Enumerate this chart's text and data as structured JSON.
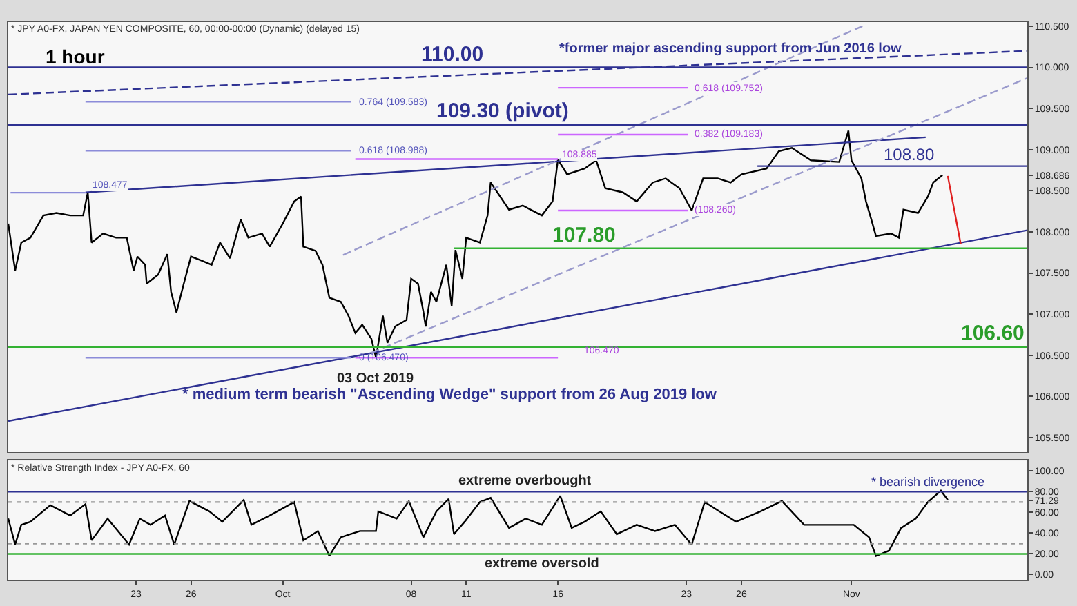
{
  "chart_data": [
    {
      "type": "line",
      "grid": false,
      "tick_labels": "y",
      "xlim": [
        "2019-09-16T01:00",
        "2019-11-10T14:00"
      ],
      "ylim": [
        105.32,
        110.55
      ],
      "yticks": [
        {
          "value": 105.5,
          "label": "105.500"
        },
        {
          "value": 106.0,
          "label": "106.000"
        },
        {
          "value": 106.5,
          "label": "106.500"
        },
        {
          "value": 107.0,
          "label": "107.000"
        },
        {
          "value": 107.5,
          "label": "107.500"
        },
        {
          "value": 108.0,
          "label": "108.000"
        },
        {
          "value": 108.5,
          "label": "108.500"
        },
        {
          "value": 108.686,
          "label": "108.686"
        },
        {
          "value": 109.0,
          "label": "109.000"
        },
        {
          "value": 109.5,
          "label": "109.500"
        },
        {
          "value": 110.0,
          "label": "110.000"
        },
        {
          "value": 110.5,
          "label": "110.500"
        }
      ],
      "series": [
        {
          "color": "#000000",
          "x": [
            "2019-09-16T01:00",
            "2019-09-16T10:00",
            "2019-09-16T18:00",
            "2019-09-17T06:00",
            "2019-09-17T23:00",
            "2019-09-18T16:00",
            "2019-09-19T10:00",
            "2019-09-20T03:00",
            "2019-09-20T09:00",
            "2019-09-20T14:00",
            "2019-09-21T05:00",
            "2019-09-21T22:00",
            "2019-09-22T12:00",
            "2019-09-22T21:00",
            "2019-09-23T02:00",
            "2019-09-23T12:00",
            "2019-09-23T14:00",
            "2019-09-24T05:00",
            "2019-09-24T17:00",
            "2019-09-24T22:00",
            "2019-09-25T05:00",
            "2019-09-25T14:00",
            "2019-09-26T00:00",
            "2019-09-26T14:00",
            "2019-09-27T03:00",
            "2019-09-27T14:00",
            "2019-09-28T03:00",
            "2019-09-28T17:00",
            "2019-09-29T03:00",
            "2019-09-29T21:00",
            "2019-09-30T07:00",
            "2019-10-01T00:00",
            "2019-10-01T15:00",
            "2019-10-02T00:00",
            "2019-10-02T03:00",
            "2019-10-02T19:00",
            "2019-10-03T04:00",
            "2019-10-03T13:00",
            "2019-10-04T04:00",
            "2019-10-04T14:00",
            "2019-10-04T23:00",
            "2019-10-05T08:00",
            "2019-10-05T20:00",
            "2019-10-06T02:00",
            "2019-10-06T11:00",
            "2019-10-06T17:00",
            "2019-10-07T03:00",
            "2019-10-07T18:00",
            "2019-10-08T00:00",
            "2019-10-08T09:00",
            "2019-10-08T16:00",
            "2019-10-08T19:00",
            "2019-10-09T02:00",
            "2019-10-09T09:00",
            "2019-10-09T22:00",
            "2019-10-10T05:00",
            "2019-10-10T10:00",
            "2019-10-10T19:00",
            "2019-10-11T00:00",
            "2019-10-11T18:00",
            "2019-10-12T04:00",
            "2019-10-12T08:00",
            "2019-10-13T08:00",
            "2019-10-14T02:00",
            "2019-10-15T03:00",
            "2019-10-15T17:00",
            "2019-10-16T00:00",
            "2019-10-16T12:00",
            "2019-10-17T11:00",
            "2019-10-18T02:00",
            "2019-10-18T14:00",
            "2019-10-19T13:00",
            "2019-10-20T07:00",
            "2019-10-21T04:00",
            "2019-10-21T21:00",
            "2019-10-22T15:00",
            "2019-10-23T07:00",
            "2019-10-23T22:00",
            "2019-10-24T17:00",
            "2019-10-25T10:00",
            "2019-10-26T00:00",
            "2019-10-27T09:00",
            "2019-10-28T01:00",
            "2019-10-28T18:00",
            "2019-10-29T19:00",
            "2019-10-31T08:00",
            "2019-10-31T20:00",
            "2019-11-01T00:00",
            "2019-11-01T13:00",
            "2019-11-01T19:00",
            "2019-11-02T02:00",
            "2019-11-02T08:00",
            "2019-11-03T04:00",
            "2019-11-03T14:00",
            "2019-11-03T20:00",
            "2019-11-04T15:00",
            "2019-11-05T04:00",
            "2019-11-05T11:00",
            "2019-11-05T23:00"
          ],
          "values": [
            108.1,
            107.53,
            107.87,
            107.93,
            108.2,
            108.23,
            108.2,
            108.2,
            108.48,
            107.87,
            107.98,
            107.93,
            107.93,
            107.53,
            107.7,
            107.6,
            107.37,
            107.48,
            107.73,
            107.27,
            107.02,
            107.35,
            107.7,
            107.65,
            107.6,
            107.87,
            107.68,
            108.15,
            107.93,
            107.98,
            107.82,
            108.1,
            108.37,
            108.43,
            107.82,
            107.77,
            107.6,
            107.2,
            107.15,
            106.98,
            106.77,
            106.87,
            106.7,
            106.47,
            106.98,
            106.65,
            106.85,
            106.93,
            107.43,
            107.37,
            107.03,
            106.85,
            107.27,
            107.15,
            107.6,
            107.1,
            107.78,
            107.43,
            107.93,
            107.87,
            108.2,
            108.6,
            108.27,
            108.32,
            108.2,
            108.37,
            108.88,
            108.7,
            108.77,
            108.87,
            108.53,
            108.48,
            108.37,
            108.6,
            108.65,
            108.53,
            108.26,
            108.65,
            108.65,
            108.6,
            108.7,
            108.77,
            108.98,
            109.02,
            108.87,
            108.85,
            109.23,
            108.87,
            108.65,
            108.37,
            108.15,
            107.95,
            107.98,
            107.93,
            108.27,
            108.23,
            108.43,
            108.6,
            108.69
          ]
        },
        {
          "color": "#2e3192",
          "line_style": "dashed",
          "x": [
            "2019-09-16T01:00",
            "2019-11-10T14:00"
          ],
          "values": [
            109.67,
            110.2
          ]
        },
        {
          "color": "#2e3192",
          "x": [
            "2019-09-20T06:00",
            "2019-11-05T01:00"
          ],
          "values": [
            108.48,
            109.15
          ]
        },
        {
          "color": "#2e3192",
          "x": [
            "2019-09-16T01:00",
            "2019-11-10T14:00"
          ],
          "values": [
            105.7,
            108.02
          ]
        },
        {
          "color": "#9a9acc",
          "line_style": "dashed",
          "x": [
            "2019-10-04T07:00",
            "2019-11-01T19:00"
          ],
          "values": [
            107.72,
            110.52
          ]
        },
        {
          "color": "#9a9acc",
          "line_style": "dashed",
          "x": [
            "2019-10-05T20:00",
            "2019-11-10T14:00"
          ],
          "values": [
            106.53,
            109.87
          ]
        },
        {
          "color": "#2e3192",
          "x": [
            "2019-09-16T01:00",
            "2019-11-10T14:00"
          ],
          "values": [
            110.0,
            110.0
          ]
        },
        {
          "color": "#2e3192",
          "x": [
            "2019-09-16T01:00",
            "2019-11-10T14:00"
          ],
          "values": [
            109.3,
            109.3
          ]
        },
        {
          "color": "#2e3192",
          "x": [
            "2019-10-26T21:00",
            "2019-11-10T14:00"
          ],
          "values": [
            108.8,
            108.8
          ]
        },
        {
          "color": "#33b233",
          "x": [
            "2019-10-10T08:00",
            "2019-11-10T14:00"
          ],
          "values": [
            107.8,
            107.8
          ]
        },
        {
          "color": "#33b233",
          "x": [
            "2019-09-16T01:00",
            "2019-11-10T14:00"
          ],
          "values": [
            106.6,
            106.6
          ]
        },
        {
          "color": "#8c8cd9",
          "x": [
            "2019-09-16T04:00",
            "2019-09-20T06:00"
          ],
          "values": [
            108.477,
            108.477
          ]
        },
        {
          "color": "#8c8cd9",
          "x": [
            "2019-09-20T06:00",
            "2019-10-04T17:00"
          ],
          "values": [
            109.583,
            109.583
          ]
        },
        {
          "color": "#8c8cd9",
          "x": [
            "2019-09-20T06:00",
            "2019-10-04T17:00"
          ],
          "values": [
            108.988,
            108.988
          ]
        },
        {
          "color": "#8c8cd9",
          "x": [
            "2019-09-20T06:00",
            "2019-10-04T17:00"
          ],
          "values": [
            106.47,
            106.47
          ]
        },
        {
          "color": "#cc66ff",
          "x": [
            "2019-10-04T23:00",
            "2019-10-16T00:00"
          ],
          "values": [
            108.885,
            108.885
          ]
        },
        {
          "color": "#cc66ff",
          "x": [
            "2019-10-04T23:00",
            "2019-10-16T00:00"
          ],
          "values": [
            106.47,
            106.47
          ]
        },
        {
          "color": "#cc66ff",
          "x": [
            "2019-10-16T00:00",
            "2019-10-23T02:00"
          ],
          "values": [
            109.752,
            109.752
          ]
        },
        {
          "color": "#cc66ff",
          "x": [
            "2019-10-16T00:00",
            "2019-10-23T02:00"
          ],
          "values": [
            109.183,
            109.183
          ]
        },
        {
          "color": "#cc66ff",
          "x": [
            "2019-10-16T00:00",
            "2019-10-23T02:00"
          ],
          "values": [
            108.26,
            108.26
          ]
        },
        {
          "color": "#e02020",
          "x": [
            "2019-11-06T06:00",
            "2019-11-06T23:00"
          ],
          "values": [
            108.68,
            107.85
          ]
        }
      ],
      "annotations": [
        "* JPY A0-FX, JAPAN YEN COMPOSITE, 60, 00:00-00:00 (Dynamic) (delayed 15)",
        "1 hour",
        "*former major ascending support from Jun 2016 low",
        "* medium term bearish \"Ascending Wedge\" support from 26 Aug 2019 low",
        {
          "text": "110.00",
          "x": "2019-10-10T06:00",
          "y": 110.0
        },
        {
          "text": "109.30 (pivot)",
          "x": "2019-10-12T23:00",
          "y": 109.3
        },
        {
          "text": "108.80",
          "x": "2019-11-04T03:00",
          "y": 108.8
        },
        {
          "text": "107.80",
          "x": "2019-10-17T11:00",
          "y": 107.8
        },
        {
          "text": "106.60",
          "x": "2019-11-08T17:00",
          "y": 106.6
        },
        {
          "text": "03 Oct 2019",
          "x": "2019-10-06T02:00",
          "y": 106.47
        },
        {
          "text": "108.477",
          "x": "2019-09-20T09:00",
          "y": 108.477
        },
        {
          "text": "0.764 (109.583)",
          "x": "2019-10-04T23:00",
          "y": 109.583
        },
        {
          "text": "0.618 (108.988)",
          "x": "2019-10-04T23:00",
          "y": 108.988
        },
        {
          "text": "0 (106.470)",
          "x": "2019-10-04T23:00",
          "y": 106.47
        },
        {
          "text": "108.885",
          "x": "2019-10-16T00:00",
          "y": 108.885
        },
        {
          "text": "0.618 (109.752)",
          "x": "2019-10-23T05:00",
          "y": 109.752
        },
        {
          "text": "0.382 (109.183)",
          "x": "2019-10-23T05:00",
          "y": 109.183
        },
        {
          "text": "(108.260)",
          "x": "2019-10-23T05:00",
          "y": 108.26
        },
        "106.470"
      ]
    },
    {
      "type": "line",
      "grid": false,
      "xlim": [
        "2019-09-16T01:00",
        "2019-11-10T14:00"
      ],
      "xticks": [
        {
          "value": "2019-09-23",
          "label": "23"
        },
        {
          "value": "2019-09-26",
          "label": "26"
        },
        {
          "value": "2019-10-01",
          "label": "Oct"
        },
        {
          "value": "2019-10-08",
          "label": "08"
        },
        {
          "value": "2019-10-11",
          "label": "11"
        },
        {
          "value": "2019-10-16",
          "label": "16"
        },
        {
          "value": "2019-10-23",
          "label": "23"
        },
        {
          "value": "2019-10-26",
          "label": "26"
        },
        {
          "value": "2019-11-01",
          "label": "Nov"
        }
      ],
      "ylim": [
        -5,
        110
      ],
      "yticks": [
        {
          "value": 0,
          "label": "0.00"
        },
        {
          "value": 20,
          "label": "20.00"
        },
        {
          "value": 40,
          "label": "40.00"
        },
        {
          "value": 60,
          "label": "60.00"
        },
        {
          "value": 71.29,
          "label": "71.29"
        },
        {
          "value": 80,
          "label": "80.00"
        },
        {
          "value": 100,
          "label": "100.00"
        }
      ],
      "series": [
        {
          "color": "#000000",
          "x": [
            "2019-09-16T01:00",
            "2019-09-16T10:00",
            "2019-09-16T18:00",
            "2019-09-17T06:00",
            "2019-09-18T08:00",
            "2019-09-19T10:00",
            "2019-09-20T06:00",
            "2019-09-20T14:00",
            "2019-09-21T11:00",
            "2019-09-22T15:00",
            "2019-09-23T05:00",
            "2019-09-23T19:00",
            "2019-09-24T14:00",
            "2019-09-25T02:00",
            "2019-09-25T22:00",
            "2019-09-27T00:00",
            "2019-09-27T17:00",
            "2019-09-28T21:00",
            "2019-09-29T07:00",
            "2019-09-30T07:00",
            "2019-10-01T15:00",
            "2019-10-02T03:00",
            "2019-10-02T22:00",
            "2019-10-03T13:00",
            "2019-10-04T04:00",
            "2019-10-05T05:00",
            "2019-10-06T02:00",
            "2019-10-06T05:00",
            "2019-10-07T05:00",
            "2019-10-07T21:00",
            "2019-10-08T16:00",
            "2019-10-09T09:00",
            "2019-10-10T01:00",
            "2019-10-10T08:00",
            "2019-10-10T22:00",
            "2019-10-11T18:00",
            "2019-10-12T08:00",
            "2019-10-13T08:00",
            "2019-10-14T06:00",
            "2019-10-15T03:00",
            "2019-10-16T03:00",
            "2019-10-16T18:00",
            "2019-10-17T11:00",
            "2019-10-18T08:00",
            "2019-10-19T05:00",
            "2019-10-20T07:00",
            "2019-10-21T07:00",
            "2019-10-22T09:00",
            "2019-10-23T07:00",
            "2019-10-24T00:00",
            "2019-10-24T19:00",
            "2019-10-25T17:00",
            "2019-10-27T01:00",
            "2019-10-28T05:00",
            "2019-10-29T10:00",
            "2019-10-30T23:00",
            "2019-11-01T03:00",
            "2019-11-01T23:00",
            "2019-11-02T08:00",
            "2019-11-03T01:00",
            "2019-11-03T17:00",
            "2019-11-04T12:00",
            "2019-11-05T04:00",
            "2019-11-05T21:00",
            "2019-11-06T06:00"
          ],
          "values": [
            54,
            29,
            48,
            51,
            67,
            57,
            68,
            33,
            54,
            29,
            54,
            48,
            57,
            29,
            71,
            61,
            51,
            72,
            48,
            57,
            70,
            33,
            42,
            18,
            36,
            42,
            42,
            61,
            54,
            71,
            36,
            61,
            73,
            39,
            51,
            70,
            74,
            45,
            54,
            48,
            76,
            45,
            51,
            61,
            39,
            48,
            42,
            48,
            29,
            70,
            61,
            51,
            61,
            71,
            48,
            48,
            48,
            36,
            18,
            23,
            45,
            54,
            70,
            81,
            72
          ]
        }
      ],
      "ref_lines": [
        {
          "axis": "y",
          "value": 80,
          "color": "#2e3192"
        },
        {
          "axis": "y",
          "value": 20,
          "color": "#33b233"
        },
        {
          "axis": "y",
          "value": 70,
          "color": "#999999",
          "line_style": "dotted"
        },
        {
          "axis": "y",
          "value": 30,
          "color": "#999999",
          "line_style": "dotted"
        }
      ],
      "annotations": [
        "* Relative Strength Index - JPY A0-FX, 60",
        {
          "text": "extreme overbought",
          "x": "2019-10-14T06:00",
          "y": 80
        },
        {
          "text": "extreme oversold",
          "x": "2019-10-15T03:00",
          "y": 20
        },
        {
          "text": "* bearish divergence",
          "x": "2019-11-05T04:00",
          "y": 80
        }
      ]
    }
  ]
}
